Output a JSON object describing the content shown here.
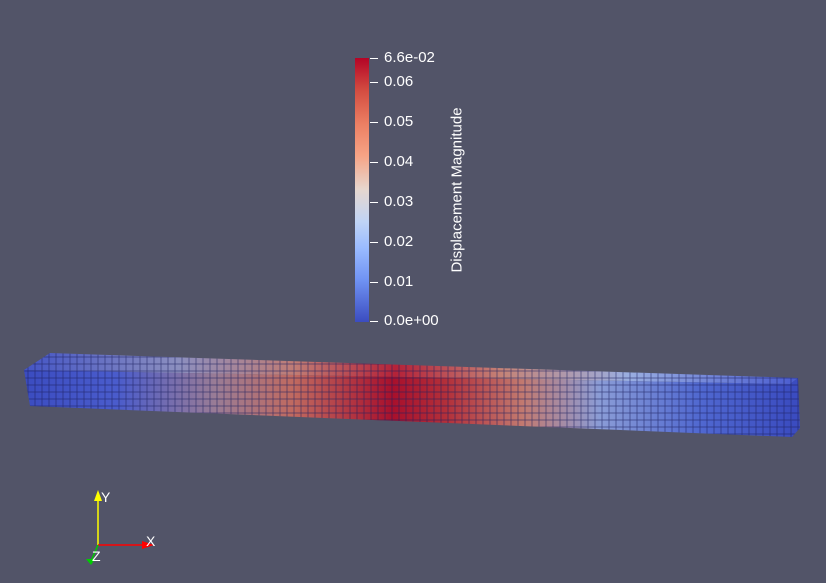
{
  "colorbar": {
    "title": "Displacement Magnitude",
    "labels": [
      "6.6e-02",
      "0.06",
      "0.05",
      "0.04",
      "0.03",
      "0.02",
      "0.01",
      "0.0e+00"
    ],
    "range": [
      0,
      0.066
    ],
    "colormap": "Cool to Warm",
    "colors": {
      "high": "#b40426",
      "mid": "#dddddd",
      "low": "#3b4cc0"
    }
  },
  "scene": {
    "background": "#525468",
    "object": "hexahedral-mesh-beam",
    "mesh_edge_color": "#1a1a55"
  },
  "axes": {
    "x": "X",
    "y": "Y",
    "z": "Z",
    "x_color": "#ff0000",
    "y_color": "#ffff00",
    "z_color": "#00cc00"
  }
}
